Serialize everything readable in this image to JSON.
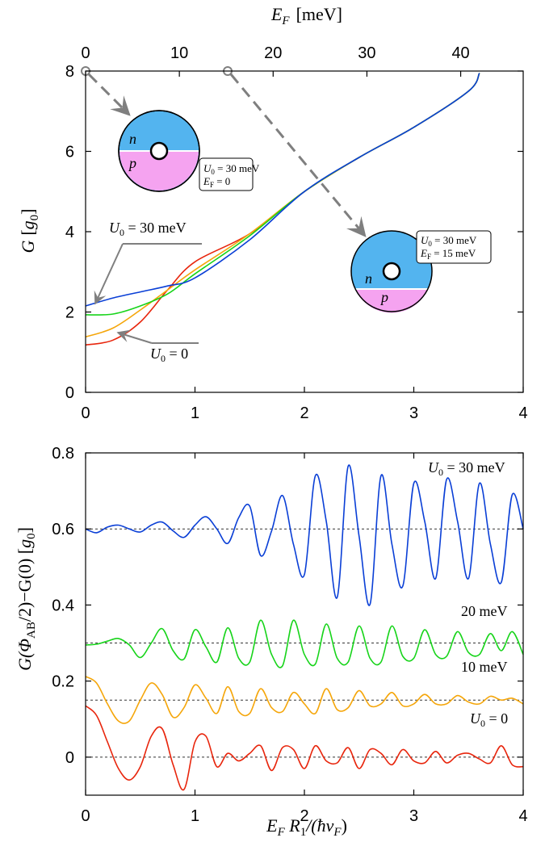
{
  "chart_data": [
    {
      "type": "line",
      "ylabel": "G [g0]",
      "ylabel_parts": {
        "main": "G",
        "bracket_open": "[",
        "sym": "g",
        "sub": "0",
        "bracket_close": "]"
      },
      "top_axis": {
        "label_sym": "E",
        "label_sub": "F",
        "label_unit": "[meV]",
        "ticks": [
          "0",
          "10",
          "20",
          "30",
          "40"
        ]
      },
      "xlim": [
        0,
        4
      ],
      "ylim": [
        0,
        8
      ],
      "xticks": [
        "0",
        "1",
        "2",
        "3",
        "4"
      ],
      "yticks": [
        "0",
        "2",
        "4",
        "6",
        "8"
      ],
      "colors": {
        "U0=0": "#e8250c",
        "10 meV": "#f5a60a",
        "20 meV": "#17d41a",
        "30 meV": "#0a3fd6",
        "arrow": "#7f7f7f"
      },
      "series": [
        {
          "name": "U0 = 0",
          "x": [
            0,
            0.25,
            0.5,
            0.75,
            1.0,
            1.5,
            2.0,
            2.5,
            3.0,
            3.5,
            3.6
          ],
          "y": [
            1.18,
            1.3,
            1.75,
            2.55,
            3.25,
            3.95,
            5.0,
            5.85,
            6.6,
            7.5,
            7.95
          ]
        },
        {
          "name": "10 meV",
          "x": [
            0,
            0.25,
            0.5,
            0.75,
            1.0,
            1.5,
            2.0,
            2.5,
            3.0,
            3.5,
            3.6
          ],
          "y": [
            1.38,
            1.6,
            2.05,
            2.55,
            3.05,
            3.95,
            5.0,
            5.85,
            6.6,
            7.5,
            7.95
          ]
        },
        {
          "name": "20 meV",
          "x": [
            0,
            0.25,
            0.5,
            0.75,
            1.0,
            1.5,
            2.0,
            2.5,
            3.0,
            3.5,
            3.6
          ],
          "y": [
            1.93,
            1.95,
            2.15,
            2.45,
            2.95,
            3.9,
            5.0,
            5.85,
            6.6,
            7.5,
            7.95
          ]
        },
        {
          "name": "30 meV",
          "x": [
            0,
            0.25,
            0.5,
            0.75,
            1.0,
            1.5,
            2.0,
            2.5,
            3.0,
            3.5,
            3.6
          ],
          "y": [
            2.15,
            2.35,
            2.5,
            2.65,
            2.85,
            3.8,
            5.0,
            5.85,
            6.6,
            7.5,
            7.95
          ]
        }
      ],
      "annotations": {
        "u30": {
          "sym": "U",
          "sub": "0",
          "text": " = 30 meV"
        },
        "u0": {
          "sym": "U",
          "sub": "0",
          "text": " = 0"
        },
        "inset1": {
          "line1_sym": "U",
          "line1_sub": "0",
          "line1_text": " = 30 meV",
          "line2_sym": "E",
          "line2_sub": "F",
          "line2_text": " = 0",
          "n": "n",
          "p": "p"
        },
        "inset2": {
          "line1_sym": "U",
          "line1_sub": "0",
          "line1_text": " = 30 meV",
          "line2_sym": "E",
          "line2_sub": "F",
          "line2_text": " = 15 meV",
          "n": "n",
          "p": "p"
        }
      }
    },
    {
      "type": "line",
      "ylabel": "G(ΦAB/2)−G(0) [g0]",
      "ylabel_parts": {
        "a": "G(Φ",
        "sub1": "AB",
        "b": "/2)−G(0)  [",
        "sym": "g",
        "sub2": "0",
        "c": "]"
      },
      "xlabel": "EF R1/(ħvF)",
      "xlabel_parts": {
        "a": "E",
        "sub1": "F",
        "b": " R",
        "sub2": "1",
        "c": "/(ħv",
        "sub3": "F",
        "d": ")"
      },
      "xlim": [
        0,
        4
      ],
      "ylim": [
        -0.1,
        0.8
      ],
      "xticks": [
        "0",
        "1",
        "2",
        "3",
        "4"
      ],
      "yticks": [
        "0",
        "0.2",
        "0.4",
        "0.6",
        "0.8"
      ],
      "baselines": [
        0,
        0.15,
        0.3,
        0.6
      ],
      "series": [
        {
          "name": "U0 = 30 meV",
          "label_sym": "U",
          "label_sub": "0",
          "label_text": " = 30 meV",
          "baseline": 0.6,
          "x": [
            0,
            0.1,
            0.2,
            0.3,
            0.4,
            0.5,
            0.6,
            0.7,
            0.8,
            0.9,
            1.0,
            1.1,
            1.2,
            1.3,
            1.4,
            1.5,
            1.6,
            1.7,
            1.8,
            1.9,
            2.0,
            2.1,
            2.2,
            2.3,
            2.4,
            2.5,
            2.6,
            2.7,
            2.8,
            2.9,
            3.0,
            3.1,
            3.2,
            3.3,
            3.4,
            3.5,
            3.6,
            3.7,
            3.8,
            3.9,
            4.0
          ],
          "y": [
            0.6,
            0.59,
            0.605,
            0.61,
            0.6,
            0.592,
            0.61,
            0.618,
            0.595,
            0.578,
            0.61,
            0.632,
            0.6,
            0.562,
            0.63,
            0.66,
            0.53,
            0.595,
            0.688,
            0.56,
            0.48,
            0.74,
            0.62,
            0.42,
            0.765,
            0.58,
            0.402,
            0.74,
            0.56,
            0.45,
            0.72,
            0.62,
            0.47,
            0.73,
            0.62,
            0.47,
            0.72,
            0.56,
            0.46,
            0.69,
            0.6
          ]
        },
        {
          "name": "20 meV",
          "label_text": "20 meV",
          "baseline": 0.3,
          "x": [
            0,
            0.1,
            0.2,
            0.3,
            0.4,
            0.5,
            0.6,
            0.7,
            0.8,
            0.9,
            1.0,
            1.1,
            1.2,
            1.3,
            1.4,
            1.5,
            1.6,
            1.7,
            1.8,
            1.9,
            2.0,
            2.1,
            2.2,
            2.3,
            2.4,
            2.5,
            2.6,
            2.7,
            2.8,
            2.9,
            3.0,
            3.1,
            3.2,
            3.3,
            3.4,
            3.5,
            3.6,
            3.7,
            3.8,
            3.9,
            4.0
          ],
          "y": [
            0.295,
            0.297,
            0.305,
            0.312,
            0.295,
            0.262,
            0.3,
            0.338,
            0.28,
            0.258,
            0.335,
            0.29,
            0.25,
            0.34,
            0.26,
            0.25,
            0.36,
            0.27,
            0.24,
            0.36,
            0.27,
            0.245,
            0.35,
            0.26,
            0.25,
            0.345,
            0.26,
            0.25,
            0.345,
            0.265,
            0.26,
            0.335,
            0.27,
            0.265,
            0.33,
            0.275,
            0.27,
            0.325,
            0.28,
            0.33,
            0.27
          ]
        },
        {
          "name": "10 meV",
          "label_text": "10 meV",
          "baseline": 0.15,
          "x": [
            0,
            0.1,
            0.2,
            0.3,
            0.4,
            0.5,
            0.6,
            0.7,
            0.8,
            0.9,
            1.0,
            1.1,
            1.2,
            1.3,
            1.4,
            1.5,
            1.6,
            1.7,
            1.8,
            1.9,
            2.0,
            2.1,
            2.2,
            2.3,
            2.4,
            2.5,
            2.6,
            2.7,
            2.8,
            2.9,
            3.0,
            3.1,
            3.2,
            3.3,
            3.4,
            3.5,
            3.6,
            3.7,
            3.8,
            3.9,
            4.0
          ],
          "y": [
            0.212,
            0.195,
            0.14,
            0.095,
            0.095,
            0.15,
            0.195,
            0.165,
            0.105,
            0.13,
            0.19,
            0.155,
            0.115,
            0.185,
            0.12,
            0.115,
            0.18,
            0.13,
            0.12,
            0.17,
            0.14,
            0.115,
            0.18,
            0.125,
            0.13,
            0.175,
            0.135,
            0.14,
            0.17,
            0.135,
            0.14,
            0.165,
            0.14,
            0.14,
            0.162,
            0.145,
            0.14,
            0.16,
            0.15,
            0.155,
            0.14
          ]
        },
        {
          "name": "U0 = 0",
          "label_sym": "U",
          "label_sub": "0",
          "label_text": " = 0",
          "baseline": 0,
          "x": [
            0,
            0.1,
            0.2,
            0.3,
            0.4,
            0.5,
            0.6,
            0.7,
            0.8,
            0.9,
            1.0,
            1.1,
            1.2,
            1.3,
            1.4,
            1.5,
            1.6,
            1.7,
            1.8,
            1.9,
            2.0,
            2.1,
            2.2,
            2.3,
            2.4,
            2.5,
            2.6,
            2.7,
            2.8,
            2.9,
            3.0,
            3.1,
            3.2,
            3.3,
            3.4,
            3.5,
            3.6,
            3.7,
            3.8,
            3.9,
            4.0
          ],
          "y": [
            0.135,
            0.11,
            0.04,
            -0.03,
            -0.06,
            -0.025,
            0.055,
            0.075,
            -0.02,
            -0.085,
            0.04,
            0.055,
            -0.025,
            0.01,
            -0.01,
            0.01,
            0.03,
            -0.035,
            0.025,
            0.02,
            -0.03,
            0.03,
            -0.01,
            -0.015,
            0.025,
            -0.03,
            0.02,
            0.01,
            -0.02,
            0.02,
            -0.01,
            -0.015,
            0.015,
            -0.015,
            0.005,
            0.01,
            -0.005,
            -0.015,
            0.03,
            -0.02,
            -0.025
          ]
        }
      ]
    }
  ]
}
